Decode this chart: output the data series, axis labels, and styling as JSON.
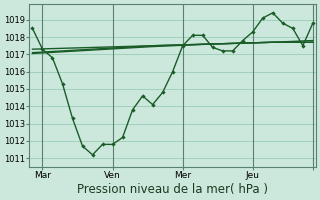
{
  "bg_color": "#cce8dc",
  "grid_color": "#99ccb8",
  "line_color": "#1a5c28",
  "series_main_x": [
    0,
    1,
    2,
    3,
    4,
    5,
    6,
    7,
    8,
    9,
    10,
    11,
    12,
    13,
    14,
    15,
    16,
    17,
    18,
    19,
    20,
    21,
    22,
    23,
    24,
    25,
    26,
    27,
    28
  ],
  "series_main_y": [
    1018.5,
    1017.3,
    1016.8,
    1015.3,
    1013.3,
    1011.7,
    1011.2,
    1011.8,
    1011.8,
    1012.2,
    1013.8,
    1014.6,
    1014.1,
    1014.8,
    1016.0,
    1017.5,
    1018.1,
    1018.1,
    1017.4,
    1017.2,
    1017.2,
    1017.8,
    1018.3,
    1019.1,
    1019.4,
    1018.8,
    1018.5,
    1017.5,
    1018.8
  ],
  "series_flat1_x": [
    0,
    6,
    12,
    18,
    24,
    28
  ],
  "series_flat1_y": [
    1017.1,
    1017.3,
    1017.5,
    1017.6,
    1017.7,
    1017.7
  ],
  "series_flat2_x": [
    0,
    6,
    12,
    18,
    24,
    28
  ],
  "series_flat2_y": [
    1017.3,
    1017.4,
    1017.5,
    1017.6,
    1017.7,
    1017.8
  ],
  "series_flat3_x": [
    0,
    6,
    12,
    18,
    24,
    28
  ],
  "series_flat3_y": [
    1017.05,
    1017.25,
    1017.45,
    1017.6,
    1017.7,
    1017.7
  ],
  "ytick_values": [
    1011,
    1012,
    1013,
    1014,
    1015,
    1016,
    1017,
    1018,
    1019
  ],
  "ytick_labels": [
    "1011",
    "1012",
    "1013",
    "1014",
    "1015",
    "1016",
    "1017",
    "1018",
    "1019"
  ],
  "ylim": [
    1010.5,
    1019.9
  ],
  "xlim": [
    -0.3,
    28.3
  ],
  "vline_x": [
    1,
    8,
    15,
    22,
    28
  ],
  "day_tick_x": [
    1,
    8,
    15,
    22,
    28
  ],
  "day_labels": [
    "Mar",
    "Ven",
    "Mer",
    "Jeu",
    ""
  ],
  "xlabel": "Pression niveau de la mer( hPa )",
  "xlabel_fontsize": 8.5
}
